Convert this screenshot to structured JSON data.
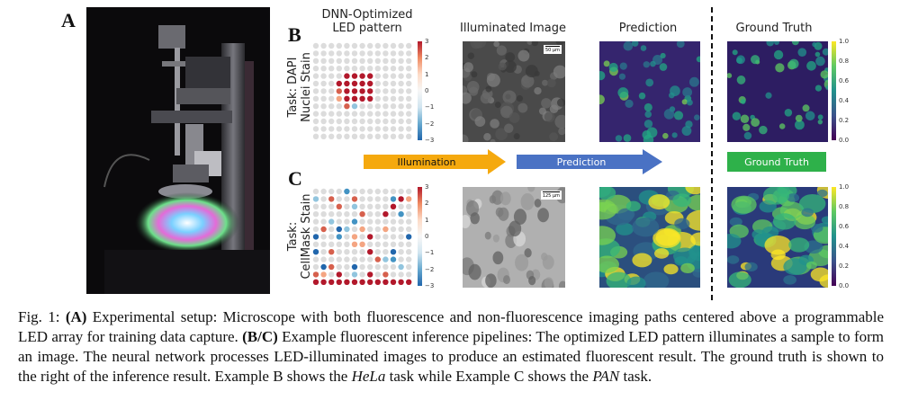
{
  "panels": {
    "a": "A",
    "b": "B",
    "c": "C"
  },
  "columns": {
    "led": [
      "DNN-Optimized",
      "LED pattern"
    ],
    "illum": "Illuminated Image",
    "pred": "Prediction",
    "gt": "Ground Truth"
  },
  "row_b": {
    "task": [
      "Task: DAPI",
      "Nuclei Stain"
    ],
    "scalebar": "50 μm",
    "led_ticks": [
      "3",
      "2",
      "1",
      "0",
      "−1",
      "−2",
      "−3"
    ],
    "gt_ticks": [
      "1.0",
      "0.8",
      "0.6",
      "0.4",
      "0.2",
      "0.0"
    ]
  },
  "row_c": {
    "task": [
      "Task:",
      "CellMask Stain"
    ],
    "scalebar": "125 μm",
    "led_ticks": [
      "3",
      "2",
      "1",
      "0",
      "−1",
      "−2",
      "−3"
    ],
    "gt_ticks": [
      "1.0",
      "0.8",
      "0.6",
      "0.4",
      "0.2",
      "0.0"
    ]
  },
  "arrows": {
    "illumination": "Illumination",
    "prediction": "Prediction",
    "ground_truth": "Ground Truth",
    "colors": {
      "illumination": "#f5a90e",
      "prediction": "#4a72c4",
      "ground_truth": "#2eb14a"
    }
  },
  "caption": {
    "fig": "Fig. 1: ",
    "a_lbl": "(A)",
    "a_txt": " Experimental setup: Microscope with both fluorescence and non-fluorescence imaging paths centered above a programmable LED array for training data capture. ",
    "bc_lbl": "(B/C)",
    "bc_txt": " Example fluorescent inference pipelines: The optimized LED pattern illuminates a sample to form an image. The neural network processes LED-illuminated images to produce an estimated fluorescent result. The ground truth is shown to the right of the inference result. Example B shows the ",
    "hela": "HeLa",
    "mid": " task while Example C shows the ",
    "pan": "PAN",
    "end": " task."
  }
}
